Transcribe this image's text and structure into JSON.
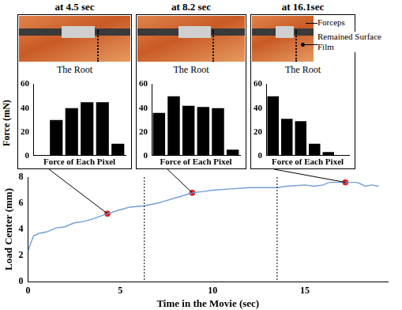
{
  "chart_data": [
    {
      "type": "line",
      "x_label": "Time in the Movie (sec)",
      "y_label": "Load Center (mm)",
      "x": [
        0,
        0.1,
        0.3,
        0.6,
        1,
        1.5,
        2,
        2.5,
        3,
        3.5,
        4.3,
        5,
        5.5,
        6.3,
        7,
        7.5,
        8.2,
        8.9,
        9.5,
        10,
        11,
        12,
        13,
        13.5,
        14,
        15,
        15.5,
        16,
        16.3,
        16.5,
        17.2,
        17.8,
        18,
        18.3,
        18.6,
        19
      ],
      "values": [
        2.3,
        2.8,
        3.5,
        3.7,
        3.8,
        4.1,
        4.2,
        4.5,
        4.6,
        4.8,
        5.2,
        5.5,
        5.7,
        5.8,
        6.0,
        6.2,
        6.5,
        6.8,
        6.9,
        7.0,
        7.1,
        7.2,
        7.2,
        7.2,
        7.3,
        7.4,
        7.3,
        7.4,
        7.6,
        7.6,
        7.6,
        7.6,
        7.5,
        7.3,
        7.4,
        7.3
      ],
      "color": "#6f9fd8",
      "xlim": [
        0,
        19.5
      ],
      "xticks": [
        0,
        5,
        10,
        15
      ],
      "ylim": [
        0,
        8
      ],
      "yticks": [
        0,
        2,
        4,
        6,
        8
      ],
      "grid": false,
      "highlights": {
        "x": [
          4.3,
          8.9,
          17.2
        ],
        "values": [
          5.2,
          6.8,
          7.6
        ],
        "color": "#e02020"
      },
      "vlines": [
        6.3,
        13.5
      ]
    },
    {
      "type": "bar",
      "title": "at 4.5 sec",
      "annotations": [
        "The Root"
      ],
      "y_label": "Force (mN)",
      "x_label": "Force of Each Pixel",
      "categories": [
        null,
        null,
        null,
        null,
        null,
        null
      ],
      "values": [
        null,
        30,
        40,
        45,
        45,
        10
      ],
      "color": "#000000",
      "ylim": [
        0,
        60
      ],
      "yticks": [
        0,
        20,
        40,
        60
      ],
      "grid": false,
      "tick_labels": "y"
    },
    {
      "type": "bar",
      "title": "at 8.2 sec",
      "annotations": [
        "The Root"
      ],
      "x_label": "Force of Each Pixel",
      "categories": [
        null,
        null,
        null,
        null,
        null,
        null
      ],
      "values": [
        36,
        50,
        42,
        41,
        40,
        5
      ],
      "color": "#000000",
      "ylim": [
        0,
        60
      ],
      "yticks": [
        0,
        20,
        40,
        60
      ],
      "grid": false,
      "tick_labels": "y"
    },
    {
      "type": "bar",
      "title": "at 16.1sec",
      "annotations": [
        "The Root",
        "Forceps",
        "Remained Surface Film"
      ],
      "x_label": "Force of Each Pixel",
      "categories": [
        null,
        null,
        null,
        null,
        null,
        null
      ],
      "values": [
        50,
        31,
        29,
        10,
        3,
        null
      ],
      "color": "#000000",
      "ylim": [
        0,
        60
      ],
      "yticks": [
        0,
        20,
        40,
        60
      ],
      "grid": false,
      "tick_labels": "y"
    }
  ]
}
